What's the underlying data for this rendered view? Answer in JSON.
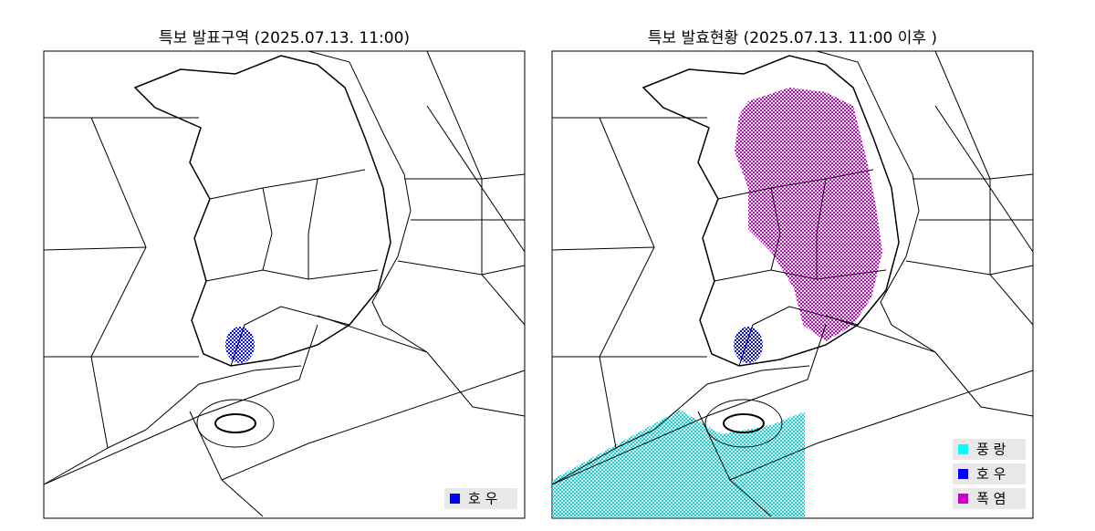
{
  "panels": [
    {
      "title": "특보 발표구역 (2025.07.13. 11:00)",
      "legend": [
        {
          "label": "호 우",
          "color": "#0000ff"
        }
      ]
    },
    {
      "title": "특보 발효현황 (2025.07.13. 11:00 이후 )",
      "legend": [
        {
          "label": "풍 랑",
          "color": "#00ffff"
        },
        {
          "label": "호 우",
          "color": "#0000ff"
        },
        {
          "label": "폭 염",
          "color": "#cc00cc"
        }
      ]
    }
  ]
}
